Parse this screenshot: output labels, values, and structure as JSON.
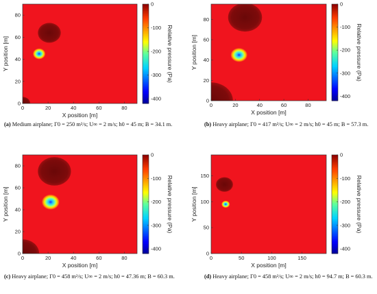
{
  "chart_data": [
    {
      "type": "heatmap",
      "panel_id": "a",
      "caption_tag": "(a)",
      "caption": "Medium airplane; Γ0 = 250 m²/s; U∞ = 2 m/s; h0 = 45 m; B = 34.1 m.",
      "xlabel": "X position [m]",
      "ylabel": "Y position [m]",
      "colorbar_label": "Relative pressure (Pa)",
      "xlim": [
        0,
        90
      ],
      "ylim": [
        0,
        90
      ],
      "xticks": [
        0,
        20,
        40,
        60,
        80
      ],
      "yticks": [
        0,
        20,
        40,
        60,
        80
      ],
      "colorbar_ticks": [
        0,
        -100,
        -200,
        -300,
        -400
      ],
      "colorbar_range": [
        -420,
        0
      ],
      "features": [
        {
          "kind": "dark-core",
          "cx": 21,
          "cy": 64,
          "r": 9
        },
        {
          "kind": "dark-core",
          "cx": 0,
          "cy": 0,
          "r": 6
        },
        {
          "kind": "vortex-core",
          "cx": 13,
          "cy": 45,
          "r": 5
        }
      ]
    },
    {
      "type": "heatmap",
      "panel_id": "b",
      "caption_tag": "(b)",
      "caption": "Heavy airplane; Γ0 = 417 m²/s; U∞ = 2 m/s; h0 = 45 m; B = 57.3 m.",
      "xlabel": "X position [m]",
      "ylabel": "Y position [m]",
      "colorbar_label": "Relative pressure (Pa)",
      "xlim": [
        0,
        95
      ],
      "ylim": [
        0,
        95
      ],
      "xticks": [
        0,
        20,
        40,
        60,
        80
      ],
      "yticks": [
        0,
        20,
        40,
        60,
        80
      ],
      "colorbar_ticks": [
        0,
        -100,
        -200,
        -300,
        -400
      ],
      "colorbar_range": [
        -420,
        0
      ],
      "features": [
        {
          "kind": "dark-core",
          "cx": 28,
          "cy": 82,
          "r": 14
        },
        {
          "kind": "dark-core",
          "cx": 0,
          "cy": 0,
          "r": 18
        },
        {
          "kind": "vortex-core",
          "cx": 23,
          "cy": 45,
          "r": 7
        }
      ]
    },
    {
      "type": "heatmap",
      "panel_id": "c",
      "caption_tag": "(c)",
      "caption": "Heavy airplane; Γ0 = 458 m²/s; U∞ = 2 m/s; h0 = 47.36 m; B = 60.3 m.",
      "xlabel": "X position [m]",
      "ylabel": "Y position [m]",
      "colorbar_label": "Relative pressure (Pa)",
      "xlim": [
        0,
        90
      ],
      "ylim": [
        0,
        90
      ],
      "xticks": [
        0,
        20,
        40,
        60,
        80
      ],
      "yticks": [
        0,
        20,
        40,
        60,
        80
      ],
      "colorbar_ticks": [
        0,
        -100,
        -200,
        -300,
        -400
      ],
      "colorbar_range": [
        -420,
        0
      ],
      "features": [
        {
          "kind": "dark-core",
          "cx": 25,
          "cy": 75,
          "r": 13
        },
        {
          "kind": "dark-core",
          "cx": 0,
          "cy": 0,
          "r": 13
        },
        {
          "kind": "vortex-core",
          "cx": 22,
          "cy": 47,
          "r": 7
        }
      ]
    },
    {
      "type": "heatmap",
      "panel_id": "d",
      "caption_tag": "(d)",
      "caption": "Heavy airplane; Γ0 = 458 m²/s; U∞ = 2 m/s; h0 = 94.7 m; B = 60.3 m.",
      "xlabel": "X position [m]",
      "ylabel": "Y position [m]",
      "colorbar_label": "Relative pressure (Pa)",
      "xlim": [
        0,
        190
      ],
      "ylim": [
        0,
        190
      ],
      "xticks": [
        0,
        50,
        100,
        150
      ],
      "yticks": [
        0,
        50,
        100,
        150
      ],
      "colorbar_ticks": [
        0,
        -100,
        -200,
        -300,
        -400
      ],
      "colorbar_range": [
        -420,
        0
      ],
      "features": [
        {
          "kind": "dark-core",
          "cx": 22,
          "cy": 133,
          "r": 14
        },
        {
          "kind": "vortex-core",
          "cx": 24,
          "cy": 95,
          "r": 7
        }
      ]
    }
  ],
  "colors": {
    "field": "#f0141e",
    "dark_core": "#7a0a0a"
  }
}
